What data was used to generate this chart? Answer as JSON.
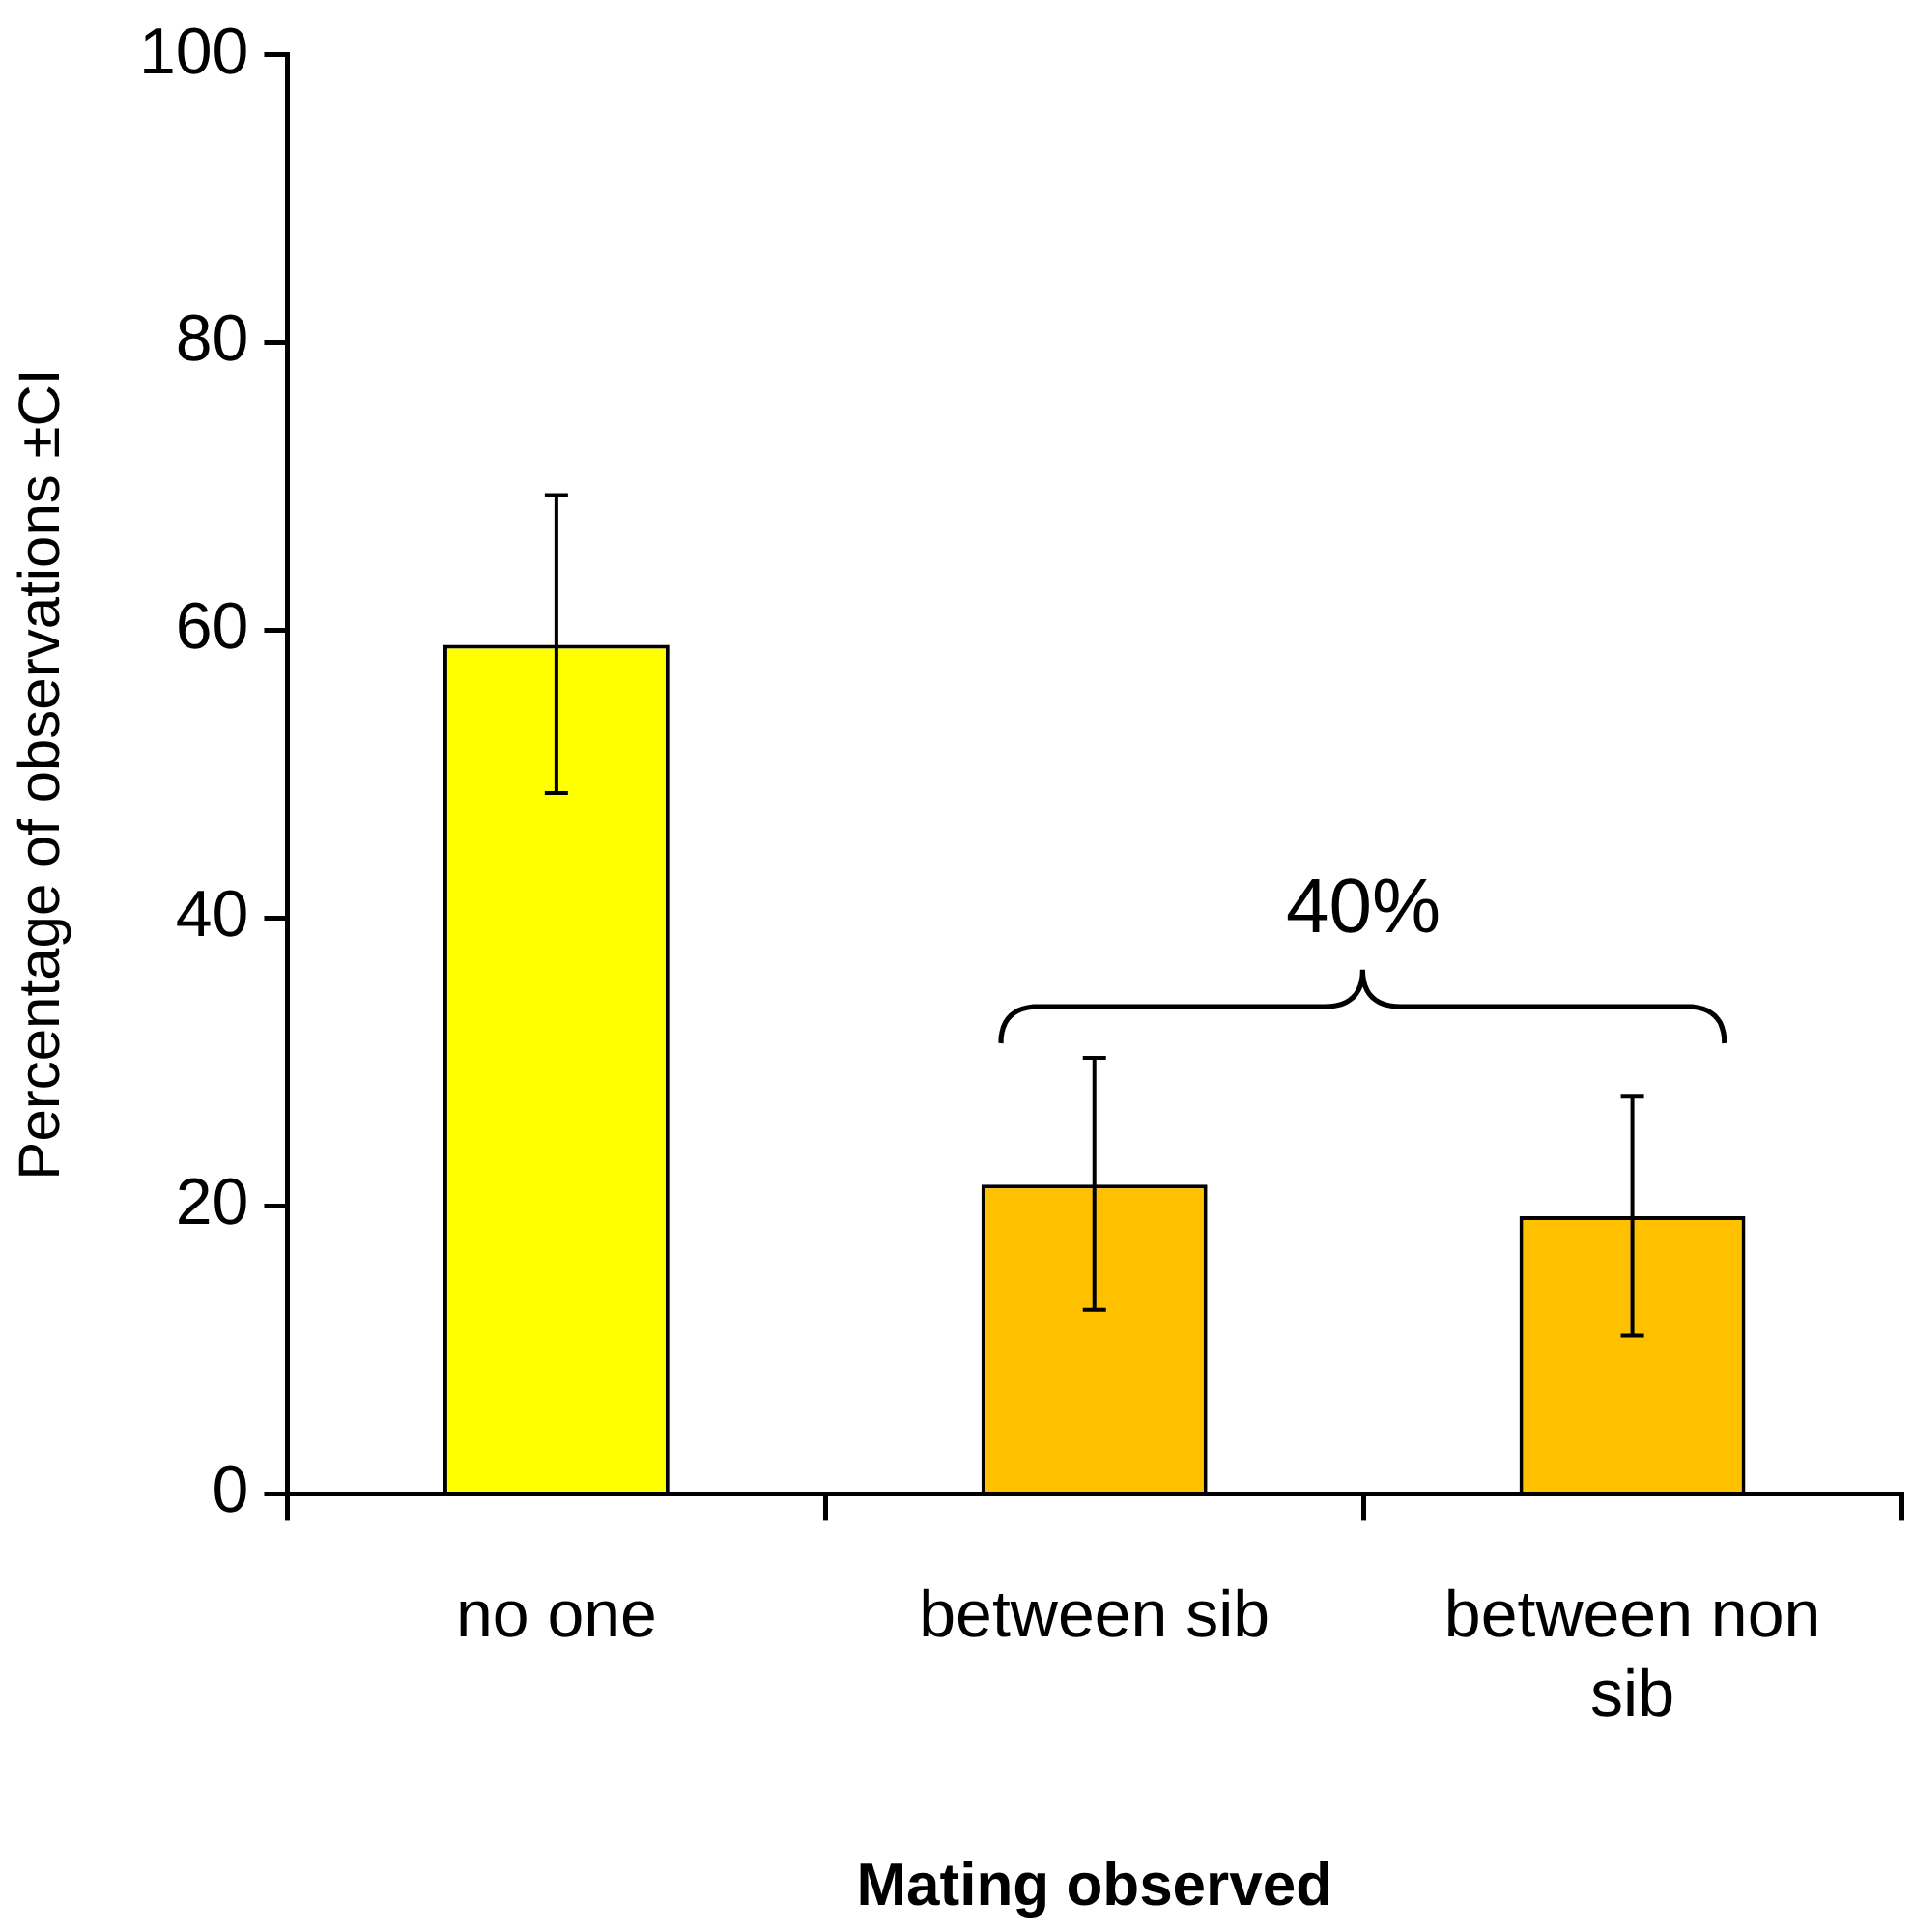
{
  "chart_data": {
    "type": "bar",
    "xlabel": "Mating observed",
    "ylabel": "Percentage of observations ±CI",
    "categories": [
      "no one",
      "between sib",
      "between non sib"
    ],
    "values": [
      59,
      21.5,
      19.3
    ],
    "colors": [
      "#ffff00",
      "#ffc000",
      "#ffc000"
    ],
    "errors": [
      [
        48.7,
        69.4
      ],
      [
        12.8,
        30.3
      ],
      [
        11,
        27.6
      ]
    ],
    "ylim": [
      0,
      100
    ],
    "yticks": [
      0,
      20,
      40,
      60,
      80,
      100
    ],
    "grid": false,
    "legend": false,
    "annotations": [
      "40%"
    ]
  }
}
